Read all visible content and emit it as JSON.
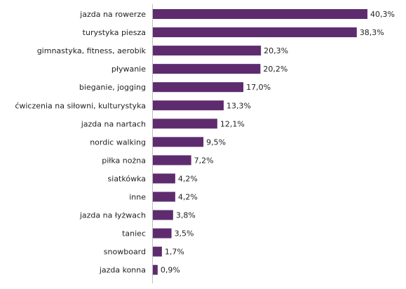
{
  "chart_data": {
    "type": "bar",
    "orientation": "horizontal",
    "title": "",
    "xlabel": "",
    "ylabel": "",
    "grid": false,
    "bar_color": "#5E2C6E",
    "categories": [
      "jazda na rowerze",
      "turystyka piesza",
      "gimnastyka, fitness, aerobik",
      "pływanie",
      "bieganie, jogging",
      "ćwiczenia na siłowni, kulturystyka",
      "jazda na nartach",
      "nordic walking",
      "piłka nożna",
      "siatkówka",
      "inne",
      "jazda na łyżwach",
      "taniec",
      "snowboard",
      "jazda konna"
    ],
    "values": [
      40.3,
      38.3,
      20.3,
      20.2,
      17.0,
      13.3,
      12.1,
      9.5,
      7.2,
      4.2,
      4.2,
      3.8,
      3.5,
      1.7,
      0.9
    ],
    "value_labels": [
      "40,3%",
      "38,3%",
      "20,3%",
      "20,2%",
      "17,0%",
      "13,3%",
      "12,1%",
      "9,5%",
      "7,2%",
      "4,2%",
      "4,2%",
      "3,8%",
      "3,5%",
      "1,7%",
      "0,9%"
    ],
    "xlim": [
      0,
      40.3
    ]
  }
}
